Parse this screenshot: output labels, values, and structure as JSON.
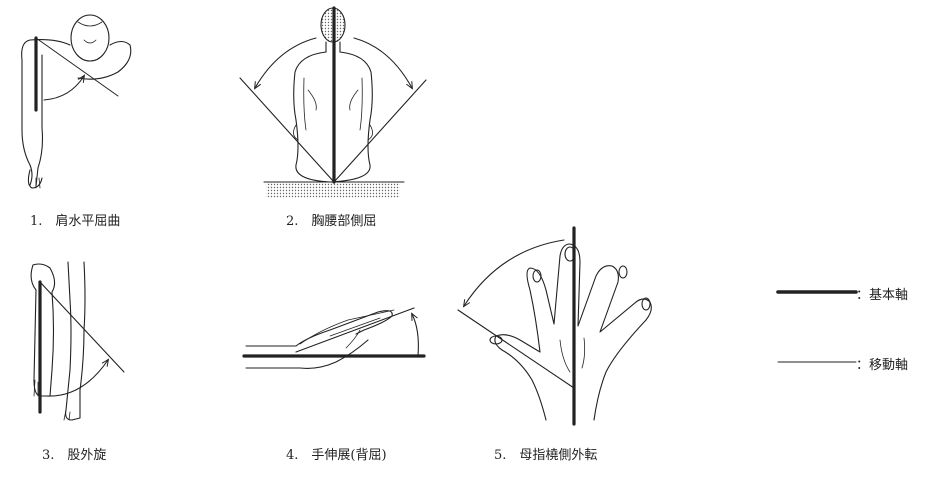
{
  "captions": [
    "1.　肩水平屈曲",
    "2.　胸腰部側屈",
    "3.　股外旋",
    "4.　手伸展(背屈)",
    "5.　母指橈側外転"
  ],
  "legend": {
    "basic_axis": "：基本軸",
    "moving_axis": "：移動軸"
  }
}
